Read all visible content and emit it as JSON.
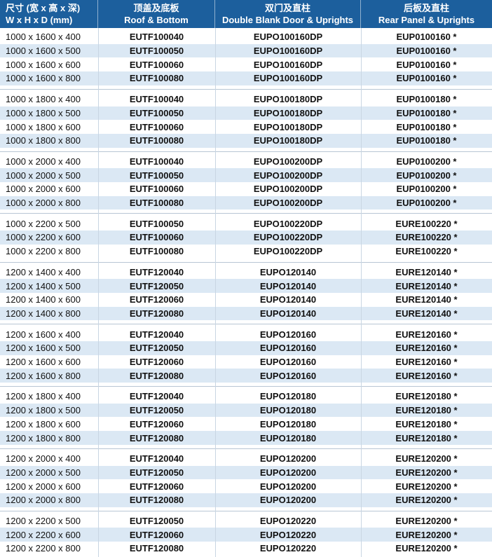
{
  "header": [
    {
      "zh": "尺寸 (宽 x 高 x 深)",
      "en": "W x H x D (mm)"
    },
    {
      "zh": "顶盖及底板",
      "en": "Roof & Bottom"
    },
    {
      "zh": "双门及直柱",
      "en": "Double Blank Door & Uprights"
    },
    {
      "zh": "后板及直柱",
      "en": "Rear Panel & Uprights"
    }
  ],
  "groups": [
    [
      [
        "1000 x 1600 x 400",
        "EUTF100040",
        "EUPO100160DP",
        "EUP0100160 *"
      ],
      [
        "1000 x 1600 x 500",
        "EUTF100050",
        "EUPO100160DP",
        "EUP0100160 *"
      ],
      [
        "1000 x 1600 x 600",
        "EUTF100060",
        "EUPO100160DP",
        "EUP0100160 *"
      ],
      [
        "1000 x 1600 x 800",
        "EUTF100080",
        "EUPO100160DP",
        "EUP0100160 *"
      ]
    ],
    [
      [
        "1000 x 1800 x 400",
        "EUTF100040",
        "EUPO100180DP",
        "EUP0100180 *"
      ],
      [
        "1000 x 1800 x 500",
        "EUTF100050",
        "EUPO100180DP",
        "EUP0100180 *"
      ],
      [
        "1000 x 1800 x 600",
        "EUTF100060",
        "EUPO100180DP",
        "EUP0100180 *"
      ],
      [
        "1000 x 1800 x 800",
        "EUTF100080",
        "EUPO100180DP",
        "EUP0100180 *"
      ]
    ],
    [
      [
        "1000 x 2000 x 400",
        "EUTF100040",
        "EUPO100200DP",
        "EUP0100200 *"
      ],
      [
        "1000 x 2000 x 500",
        "EUTF100050",
        "EUPO100200DP",
        "EUP0100200 *"
      ],
      [
        "1000 x 2000 x 600",
        "EUTF100060",
        "EUPO100200DP",
        "EUP0100200 *"
      ],
      [
        "1000 x 2000 x 800",
        "EUTF100080",
        "EUPO100200DP",
        "EUP0100200 *"
      ]
    ],
    [
      [
        "1000 x 2200 x 500",
        "EUTF100050",
        "EUPO100220DP",
        "EURE100220 *"
      ],
      [
        "1000 x 2200 x 600",
        "EUTF100060",
        "EUPO100220DP",
        "EURE100220 *"
      ],
      [
        "1000 x 2200 x 800",
        "EUTF100080",
        "EUPO100220DP",
        "EURE100220 *"
      ]
    ],
    [
      [
        "1200 x 1400 x 400",
        "EUTF120040",
        "EUPO120140",
        "EURE120140 *"
      ],
      [
        "1200 x 1400 x 500",
        "EUTF120050",
        "EUPO120140",
        "EURE120140 *"
      ],
      [
        "1200 x 1400 x 600",
        "EUTF120060",
        "EUPO120140",
        "EURE120140 *"
      ],
      [
        "1200 x 1400 x 800",
        "EUTF120080",
        "EUPO120140",
        "EURE120140 *"
      ]
    ],
    [
      [
        "1200 x 1600 x 400",
        "EUTF120040",
        "EUPO120160",
        "EURE120160 *"
      ],
      [
        "1200 x 1600 x 500",
        "EUTF120050",
        "EUPO120160",
        "EURE120160 *"
      ],
      [
        "1200 x 1600 x 600",
        "EUTF120060",
        "EUPO120160",
        "EURE120160 *"
      ],
      [
        "1200 x 1600 x 800",
        "EUTF120080",
        "EUPO120160",
        "EURE120160 *"
      ]
    ],
    [
      [
        "1200 x 1800 x 400",
        "EUTF120040",
        "EUPO120180",
        "EURE120180 *"
      ],
      [
        "1200 x 1800 x 500",
        "EUTF120050",
        "EUPO120180",
        "EURE120180 *"
      ],
      [
        "1200 x 1800 x 600",
        "EUTF120060",
        "EUPO120180",
        "EURE120180 *"
      ],
      [
        "1200 x 1800 x 800",
        "EUTF120080",
        "EUPO120180",
        "EURE120180 *"
      ]
    ],
    [
      [
        "1200 x 2000 x 400",
        "EUTF120040",
        "EUPO120200",
        "EURE120200 *"
      ],
      [
        "1200 x 2000 x 500",
        "EUTF120050",
        "EUPO120200",
        "EURE120200 *"
      ],
      [
        "1200 x 2000 x 600",
        "EUTF120060",
        "EUPO120200",
        "EURE120200 *"
      ],
      [
        "1200 x 2000 x 800",
        "EUTF120080",
        "EUPO120200",
        "EURE120200 *"
      ]
    ],
    [
      [
        "1200 x 2200 x 500",
        "EUTF120050",
        "EUPO120220",
        "EURE120200 *"
      ],
      [
        "1200 x 2200 x 600",
        "EUTF120060",
        "EUPO120220",
        "EURE120200 *"
      ],
      [
        "1200 x 2200 x 800",
        "EUTF120080",
        "EUPO120220",
        "EURE120200 *"
      ]
    ]
  ]
}
